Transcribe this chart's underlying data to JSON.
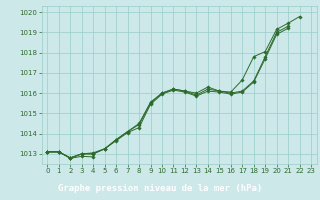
{
  "x": [
    0,
    1,
    2,
    3,
    4,
    5,
    6,
    7,
    8,
    9,
    10,
    11,
    12,
    13,
    14,
    15,
    16,
    17,
    18,
    19,
    20,
    21,
    22,
    23
  ],
  "line_upper": [
    1013.1,
    1013.1,
    1012.8,
    1013.0,
    1013.05,
    1013.25,
    1013.7,
    1014.1,
    1014.5,
    1015.55,
    1016.0,
    1016.2,
    1016.1,
    1016.0,
    1016.3,
    1016.1,
    1016.05,
    1016.65,
    1017.8,
    1018.05,
    1019.15,
    1019.45,
    1019.78,
    null
  ],
  "line_mid1": [
    1013.1,
    1013.1,
    1012.8,
    1013.0,
    1013.0,
    1013.25,
    1013.7,
    1014.1,
    1014.45,
    1015.5,
    1016.0,
    1016.2,
    1016.1,
    1015.9,
    1016.2,
    1016.1,
    1016.0,
    1016.1,
    1016.6,
    1017.8,
    1019.0,
    1019.3,
    null,
    null
  ],
  "line_mid2": [
    1013.1,
    1013.1,
    1012.8,
    1013.0,
    1013.0,
    1013.25,
    1013.65,
    1014.05,
    1014.3,
    1015.45,
    1015.95,
    1016.15,
    1016.05,
    1015.85,
    1016.1,
    1016.05,
    1015.95,
    1016.05,
    1016.55,
    1017.7,
    1018.9,
    1019.2,
    null,
    null
  ],
  "line_lower": [
    1013.1,
    1013.1,
    1012.78,
    1012.88,
    1012.85,
    null,
    null,
    null,
    null,
    null,
    null,
    null,
    null,
    null,
    null,
    null,
    null,
    null,
    null,
    null,
    null,
    null,
    null,
    null
  ],
  "background_color": "#cce8e8",
  "grid_color": "#99cccc",
  "line_color": "#2d6b2d",
  "xlabel_label": "Graphe pression niveau de la mer (hPa)",
  "xlabel_bg": "#2d6b2d",
  "xlabel_text_color": "#ffffff",
  "ylim": [
    1012.5,
    1020.3
  ],
  "yticks": [
    1013,
    1014,
    1015,
    1016,
    1017,
    1018,
    1019,
    1020
  ],
  "xticks": [
    0,
    1,
    2,
    3,
    4,
    5,
    6,
    7,
    8,
    9,
    10,
    11,
    12,
    13,
    14,
    15,
    16,
    17,
    18,
    19,
    20,
    21,
    22,
    23
  ],
  "tick_fontsize": 5,
  "label_fontsize": 6.5,
  "linewidth": 0.7,
  "markersize": 1.8
}
